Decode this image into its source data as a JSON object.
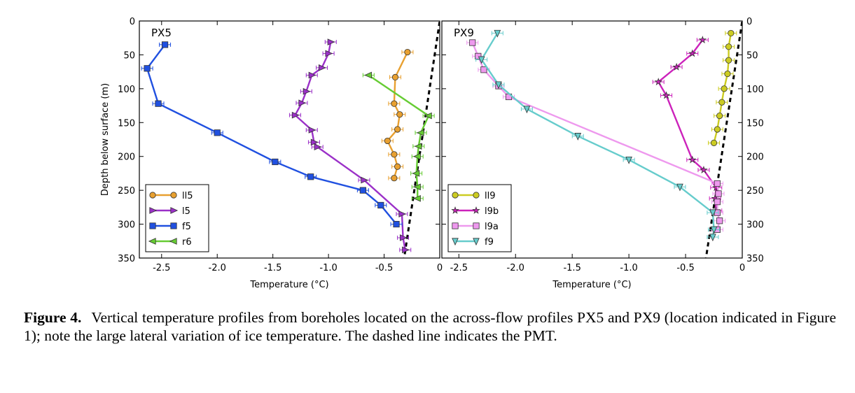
{
  "chart_data": [
    {
      "type": "line",
      "panel_label": "PX5",
      "xlabel": "Temperature (°C)",
      "ylabel": "Depth below surface (m)",
      "xlim": [
        -2.7,
        0
      ],
      "ylim": [
        350,
        0
      ],
      "y_inverted": true,
      "x_ticks": [
        -2.5,
        -2.0,
        -1.5,
        -1.0,
        -0.5,
        0
      ],
      "x_tick_labels": [
        "-2.5",
        "-2.0",
        "-1.5",
        "-1.0",
        "-0.5",
        "0"
      ],
      "y_ticks": [
        0,
        50,
        100,
        150,
        200,
        250,
        300,
        350
      ],
      "y_tick_labels": [
        "0",
        "50",
        "100",
        "150",
        "200",
        "250",
        "300",
        "350"
      ],
      "legend_position": "lower-left",
      "pmt_line": {
        "style": "dashed",
        "color": "#000000",
        "points": [
          [
            0.0,
            0
          ],
          [
            -0.32,
            350
          ]
        ]
      },
      "series": [
        {
          "name": "ll5",
          "color": "#e8a030",
          "marker": "circle",
          "points": [
            [
              -0.29,
              46
            ],
            [
              -0.4,
              83
            ],
            [
              -0.41,
              122
            ],
            [
              -0.36,
              138
            ],
            [
              -0.38,
              160
            ],
            [
              -0.47,
              177
            ],
            [
              -0.41,
              197
            ],
            [
              -0.38,
              215
            ],
            [
              -0.41,
              232
            ]
          ]
        },
        {
          "name": "l5",
          "color": "#9b30c8",
          "marker": "triangle-right",
          "points": [
            [
              -0.98,
              31
            ],
            [
              -1.0,
              48
            ],
            [
              -1.06,
              69
            ],
            [
              -1.15,
              80
            ],
            [
              -1.2,
              104
            ],
            [
              -1.24,
              121
            ],
            [
              -1.3,
              139
            ],
            [
              -1.15,
              161
            ],
            [
              -1.13,
              179
            ],
            [
              -1.1,
              186
            ],
            [
              -0.68,
              235
            ],
            [
              -0.34,
              285
            ],
            [
              -0.33,
              320
            ],
            [
              -0.31,
              338
            ]
          ]
        },
        {
          "name": "f5",
          "color": "#2050e0",
          "marker": "square",
          "points": [
            [
              -2.47,
              35
            ],
            [
              -2.63,
              70
            ],
            [
              -2.53,
              122
            ],
            [
              -2.0,
              165
            ],
            [
              -1.48,
              208
            ],
            [
              -1.16,
              230
            ],
            [
              -0.69,
              250
            ],
            [
              -0.53,
              272
            ],
            [
              -0.39,
              300
            ]
          ]
        },
        {
          "name": "r6",
          "color": "#66cc33",
          "marker": "triangle-left",
          "points": [
            [
              -0.64,
              80
            ],
            [
              -0.1,
              140
            ],
            [
              -0.17,
              165
            ],
            [
              -0.19,
              185
            ],
            [
              -0.2,
              200
            ],
            [
              -0.21,
              225
            ],
            [
              -0.2,
              245
            ],
            [
              -0.2,
              262
            ]
          ]
        }
      ]
    },
    {
      "type": "line",
      "panel_label": "PX9",
      "xlabel": "Temperature (°C)",
      "ylabel": "",
      "xlim": [
        -2.65,
        0
      ],
      "ylim": [
        350,
        0
      ],
      "y_inverted": true,
      "x_ticks": [
        -2.5,
        -2.0,
        -1.5,
        -1.0,
        -0.5,
        0
      ],
      "x_tick_labels": [
        "-2.5",
        "-2.0",
        "-1.5",
        "-1.0",
        "-0.5",
        "0"
      ],
      "y_ticks": [
        0,
        50,
        100,
        150,
        200,
        250,
        300,
        350
      ],
      "y_tick_labels": [
        "0",
        "50",
        "100",
        "150",
        "200",
        "250",
        "300",
        "350"
      ],
      "legend_position": "lower-left",
      "pmt_line": {
        "style": "dashed",
        "color": "#000000",
        "points": [
          [
            0.0,
            0
          ],
          [
            -0.32,
            350
          ]
        ]
      },
      "series": [
        {
          "name": "ll9",
          "color": "#cccc22",
          "marker": "circle",
          "points": [
            [
              -0.1,
              18
            ],
            [
              -0.12,
              38
            ],
            [
              -0.12,
              58
            ],
            [
              -0.13,
              78
            ],
            [
              -0.16,
              100
            ],
            [
              -0.18,
              120
            ],
            [
              -0.2,
              140
            ],
            [
              -0.22,
              160
            ],
            [
              -0.25,
              180
            ]
          ]
        },
        {
          "name": "l9b",
          "color": "#cc22bb",
          "marker": "star",
          "points": [
            [
              -0.35,
              28
            ],
            [
              -0.44,
              48
            ],
            [
              -0.58,
              68
            ],
            [
              -0.74,
              90
            ],
            [
              -0.67,
              110
            ],
            [
              -0.44,
              205
            ],
            [
              -0.34,
              220
            ],
            [
              -0.23,
              246
            ],
            [
              -0.24,
              262
            ],
            [
              -0.23,
              280
            ]
          ]
        },
        {
          "name": "l9a",
          "color": "#ee99ee",
          "marker": "square",
          "points": [
            [
              -2.38,
              32
            ],
            [
              -2.33,
              52
            ],
            [
              -2.28,
              72
            ],
            [
              -2.15,
              96
            ],
            [
              -2.06,
              112
            ],
            [
              -0.22,
              240
            ],
            [
              -0.21,
              255
            ],
            [
              -0.22,
              267
            ],
            [
              -0.22,
              283
            ],
            [
              -0.2,
              295
            ],
            [
              -0.22,
              308
            ]
          ]
        },
        {
          "name": "f9",
          "color": "#66cccc",
          "marker": "triangle-down",
          "points": [
            [
              -2.16,
              18
            ],
            [
              -2.3,
              57
            ],
            [
              -2.15,
              94
            ],
            [
              -1.9,
              130
            ],
            [
              -1.45,
              170
            ],
            [
              -1.0,
              205
            ],
            [
              -0.55,
              245
            ],
            [
              -0.26,
              283
            ],
            [
              -0.25,
              308
            ],
            [
              -0.26,
              319
            ]
          ]
        }
      ]
    }
  ],
  "caption": {
    "label": "Figure 4.",
    "text": "Vertical temperature profiles from boreholes located on the across-flow profiles PX5 and PX9 (location indicated in Figure 1); note the large lateral variation of ice temperature. The dashed line indicates the PMT."
  }
}
